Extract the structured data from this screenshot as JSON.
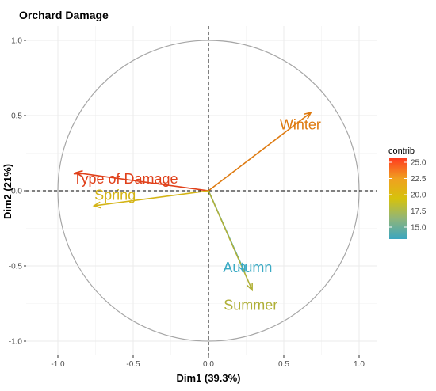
{
  "chart_data": {
    "type": "scatter",
    "subtype": "pca-variable-correlation-circle",
    "title": "Orchard Damage",
    "xlabel": "Dim1 (39.3%)",
    "ylabel": "Dim2 (21%)",
    "xlim": [
      -1.0,
      1.0
    ],
    "ylim": [
      -1.0,
      1.0
    ],
    "x_ticks": [
      "-1.0",
      "-0.5",
      "0.0",
      "0.5",
      "1.0"
    ],
    "y_ticks": [
      "-1.0",
      "-0.5",
      "0.0",
      "0.5",
      "1.0"
    ],
    "grid": true,
    "unit_circle": true,
    "reference_lines": "dashed lines at x=0 and y=0",
    "variables": [
      {
        "name": "Winter",
        "x": 0.68,
        "y": 0.52,
        "contrib": 23.5,
        "color": "#de7a10"
      },
      {
        "name": "Type of Damage",
        "x": -0.88,
        "y": 0.12,
        "contrib": 25.3,
        "color": "#e0401a"
      },
      {
        "name": "Spring",
        "x": -0.76,
        "y": -0.1,
        "contrib": 19.0,
        "color": "#d4b416"
      },
      {
        "name": "Autumn",
        "x": 0.24,
        "y": -0.54,
        "contrib": 13.5,
        "color": "#3aaac4"
      },
      {
        "name": "Summer",
        "x": 0.29,
        "y": -0.66,
        "contrib": 17.5,
        "color": "#b0b038"
      }
    ],
    "legend": {
      "title": "contrib",
      "placement": "right",
      "ticks": [
        "25.0",
        "22.5",
        "20.0",
        "17.5",
        "15.0"
      ],
      "gradient_colors": [
        "#ff3b1f",
        "#f0a020",
        "#d6c20c",
        "#8fb57a",
        "#3aa6c0"
      ]
    }
  }
}
